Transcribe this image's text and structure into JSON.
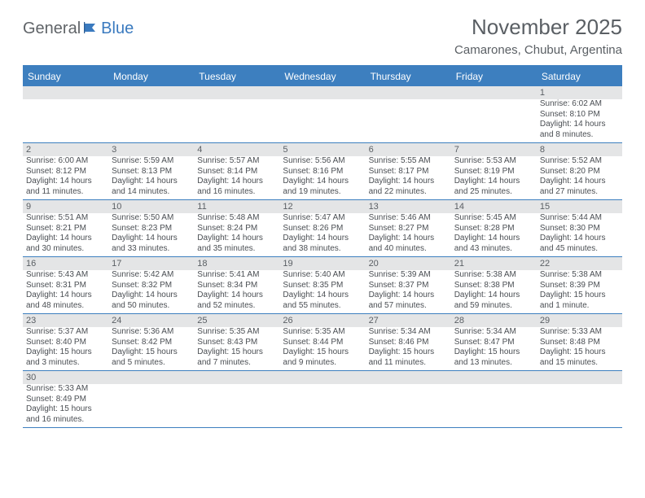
{
  "logo": {
    "text_a": "General",
    "text_b": "Blue"
  },
  "title": "November 2025",
  "subtitle": "Camarones, Chubut, Argentina",
  "colors": {
    "header_bar": "#3d7fbf",
    "header_text": "#ffffff",
    "band": "#e4e5e6",
    "rule": "#3d7fbf",
    "body_text": "#4a4e53",
    "title_text": "#5a5f64"
  },
  "day_names": [
    "Sunday",
    "Monday",
    "Tuesday",
    "Wednesday",
    "Thursday",
    "Friday",
    "Saturday"
  ],
  "weeks": [
    [
      {
        "n": "",
        "sr": "",
        "ss": "",
        "dl": ""
      },
      {
        "n": "",
        "sr": "",
        "ss": "",
        "dl": ""
      },
      {
        "n": "",
        "sr": "",
        "ss": "",
        "dl": ""
      },
      {
        "n": "",
        "sr": "",
        "ss": "",
        "dl": ""
      },
      {
        "n": "",
        "sr": "",
        "ss": "",
        "dl": ""
      },
      {
        "n": "",
        "sr": "",
        "ss": "",
        "dl": ""
      },
      {
        "n": "1",
        "sr": "Sunrise: 6:02 AM",
        "ss": "Sunset: 8:10 PM",
        "dl": "Daylight: 14 hours and 8 minutes."
      }
    ],
    [
      {
        "n": "2",
        "sr": "Sunrise: 6:00 AM",
        "ss": "Sunset: 8:12 PM",
        "dl": "Daylight: 14 hours and 11 minutes."
      },
      {
        "n": "3",
        "sr": "Sunrise: 5:59 AM",
        "ss": "Sunset: 8:13 PM",
        "dl": "Daylight: 14 hours and 14 minutes."
      },
      {
        "n": "4",
        "sr": "Sunrise: 5:57 AM",
        "ss": "Sunset: 8:14 PM",
        "dl": "Daylight: 14 hours and 16 minutes."
      },
      {
        "n": "5",
        "sr": "Sunrise: 5:56 AM",
        "ss": "Sunset: 8:16 PM",
        "dl": "Daylight: 14 hours and 19 minutes."
      },
      {
        "n": "6",
        "sr": "Sunrise: 5:55 AM",
        "ss": "Sunset: 8:17 PM",
        "dl": "Daylight: 14 hours and 22 minutes."
      },
      {
        "n": "7",
        "sr": "Sunrise: 5:53 AM",
        "ss": "Sunset: 8:19 PM",
        "dl": "Daylight: 14 hours and 25 minutes."
      },
      {
        "n": "8",
        "sr": "Sunrise: 5:52 AM",
        "ss": "Sunset: 8:20 PM",
        "dl": "Daylight: 14 hours and 27 minutes."
      }
    ],
    [
      {
        "n": "9",
        "sr": "Sunrise: 5:51 AM",
        "ss": "Sunset: 8:21 PM",
        "dl": "Daylight: 14 hours and 30 minutes."
      },
      {
        "n": "10",
        "sr": "Sunrise: 5:50 AM",
        "ss": "Sunset: 8:23 PM",
        "dl": "Daylight: 14 hours and 33 minutes."
      },
      {
        "n": "11",
        "sr": "Sunrise: 5:48 AM",
        "ss": "Sunset: 8:24 PM",
        "dl": "Daylight: 14 hours and 35 minutes."
      },
      {
        "n": "12",
        "sr": "Sunrise: 5:47 AM",
        "ss": "Sunset: 8:26 PM",
        "dl": "Daylight: 14 hours and 38 minutes."
      },
      {
        "n": "13",
        "sr": "Sunrise: 5:46 AM",
        "ss": "Sunset: 8:27 PM",
        "dl": "Daylight: 14 hours and 40 minutes."
      },
      {
        "n": "14",
        "sr": "Sunrise: 5:45 AM",
        "ss": "Sunset: 8:28 PM",
        "dl": "Daylight: 14 hours and 43 minutes."
      },
      {
        "n": "15",
        "sr": "Sunrise: 5:44 AM",
        "ss": "Sunset: 8:30 PM",
        "dl": "Daylight: 14 hours and 45 minutes."
      }
    ],
    [
      {
        "n": "16",
        "sr": "Sunrise: 5:43 AM",
        "ss": "Sunset: 8:31 PM",
        "dl": "Daylight: 14 hours and 48 minutes."
      },
      {
        "n": "17",
        "sr": "Sunrise: 5:42 AM",
        "ss": "Sunset: 8:32 PM",
        "dl": "Daylight: 14 hours and 50 minutes."
      },
      {
        "n": "18",
        "sr": "Sunrise: 5:41 AM",
        "ss": "Sunset: 8:34 PM",
        "dl": "Daylight: 14 hours and 52 minutes."
      },
      {
        "n": "19",
        "sr": "Sunrise: 5:40 AM",
        "ss": "Sunset: 8:35 PM",
        "dl": "Daylight: 14 hours and 55 minutes."
      },
      {
        "n": "20",
        "sr": "Sunrise: 5:39 AM",
        "ss": "Sunset: 8:37 PM",
        "dl": "Daylight: 14 hours and 57 minutes."
      },
      {
        "n": "21",
        "sr": "Sunrise: 5:38 AM",
        "ss": "Sunset: 8:38 PM",
        "dl": "Daylight: 14 hours and 59 minutes."
      },
      {
        "n": "22",
        "sr": "Sunrise: 5:38 AM",
        "ss": "Sunset: 8:39 PM",
        "dl": "Daylight: 15 hours and 1 minute."
      }
    ],
    [
      {
        "n": "23",
        "sr": "Sunrise: 5:37 AM",
        "ss": "Sunset: 8:40 PM",
        "dl": "Daylight: 15 hours and 3 minutes."
      },
      {
        "n": "24",
        "sr": "Sunrise: 5:36 AM",
        "ss": "Sunset: 8:42 PM",
        "dl": "Daylight: 15 hours and 5 minutes."
      },
      {
        "n": "25",
        "sr": "Sunrise: 5:35 AM",
        "ss": "Sunset: 8:43 PM",
        "dl": "Daylight: 15 hours and 7 minutes."
      },
      {
        "n": "26",
        "sr": "Sunrise: 5:35 AM",
        "ss": "Sunset: 8:44 PM",
        "dl": "Daylight: 15 hours and 9 minutes."
      },
      {
        "n": "27",
        "sr": "Sunrise: 5:34 AM",
        "ss": "Sunset: 8:46 PM",
        "dl": "Daylight: 15 hours and 11 minutes."
      },
      {
        "n": "28",
        "sr": "Sunrise: 5:34 AM",
        "ss": "Sunset: 8:47 PM",
        "dl": "Daylight: 15 hours and 13 minutes."
      },
      {
        "n": "29",
        "sr": "Sunrise: 5:33 AM",
        "ss": "Sunset: 8:48 PM",
        "dl": "Daylight: 15 hours and 15 minutes."
      }
    ],
    [
      {
        "n": "30",
        "sr": "Sunrise: 5:33 AM",
        "ss": "Sunset: 8:49 PM",
        "dl": "Daylight: 15 hours and 16 minutes."
      },
      {
        "n": "",
        "sr": "",
        "ss": "",
        "dl": ""
      },
      {
        "n": "",
        "sr": "",
        "ss": "",
        "dl": ""
      },
      {
        "n": "",
        "sr": "",
        "ss": "",
        "dl": ""
      },
      {
        "n": "",
        "sr": "",
        "ss": "",
        "dl": ""
      },
      {
        "n": "",
        "sr": "",
        "ss": "",
        "dl": ""
      },
      {
        "n": "",
        "sr": "",
        "ss": "",
        "dl": ""
      }
    ]
  ]
}
